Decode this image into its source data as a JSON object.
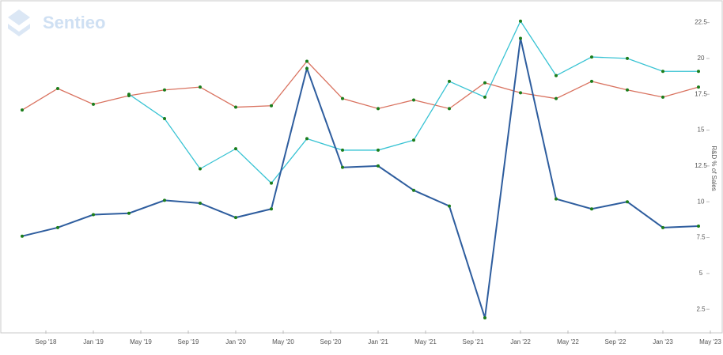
{
  "logo": "Sentieo",
  "chart_data": {
    "type": "line",
    "y_axis_label": "R&D % of Sales",
    "x": [
      "2018-07",
      "2018-10",
      "2019-01",
      "2019-04",
      "2019-07",
      "2019-10",
      "2020-01",
      "2020-04",
      "2020-07",
      "2020-10",
      "2021-01",
      "2021-04",
      "2021-07",
      "2021-10",
      "2022-01",
      "2022-04",
      "2022-07",
      "2022-10",
      "2023-01",
      "2023-04"
    ],
    "xlim": [
      "2018-06",
      "2023-05"
    ],
    "xticks": [
      {
        "value": "2018-09",
        "label": "Sep '18"
      },
      {
        "value": "2019-01",
        "label": "Jan '19"
      },
      {
        "value": "2019-05",
        "label": "May '19"
      },
      {
        "value": "2019-09",
        "label": "Sep '19"
      },
      {
        "value": "2020-01",
        "label": "Jan '20"
      },
      {
        "value": "2020-05",
        "label": "May '20"
      },
      {
        "value": "2020-09",
        "label": "Sep '20"
      },
      {
        "value": "2021-01",
        "label": "Jan '21"
      },
      {
        "value": "2021-05",
        "label": "May '21"
      },
      {
        "value": "2021-09",
        "label": "Sep '21"
      },
      {
        "value": "2022-01",
        "label": "Jan '22"
      },
      {
        "value": "2022-05",
        "label": "May '22"
      },
      {
        "value": "2022-09",
        "label": "Sep '22"
      },
      {
        "value": "2023-01",
        "label": "Jan '23"
      },
      {
        "value": "2023-05",
        "label": "May '23"
      }
    ],
    "ylim": [
      0.8,
      23.8
    ],
    "yticks": [
      2.5,
      5,
      7.5,
      10,
      12.5,
      15,
      17.5,
      20,
      22.5
    ],
    "y_axis_side": "right",
    "marker_color": "#1b7d1b",
    "series": [
      {
        "color": "#d9725f",
        "values": [
          16.4,
          17.9,
          16.8,
          17.4,
          17.8,
          18.0,
          16.6,
          16.7,
          19.8,
          17.2,
          16.5,
          17.1,
          16.5,
          18.3,
          17.6,
          17.2,
          18.4,
          17.8,
          17.3,
          18.0
        ]
      },
      {
        "color": "#38c3d3",
        "values": [
          null,
          null,
          null,
          17.5,
          15.8,
          12.3,
          13.7,
          11.3,
          14.4,
          13.6,
          13.6,
          14.3,
          18.4,
          17.3,
          22.6,
          18.8,
          20.1,
          20.0,
          19.1,
          19.1
        ]
      },
      {
        "color": "#2e5d9e",
        "values": [
          7.6,
          8.2,
          9.1,
          9.2,
          10.1,
          9.9,
          8.9,
          9.5,
          19.3,
          12.4,
          12.5,
          10.8,
          9.7,
          1.9,
          21.4,
          10.2,
          9.5,
          10.0,
          8.2,
          8.3
        ]
      }
    ]
  }
}
